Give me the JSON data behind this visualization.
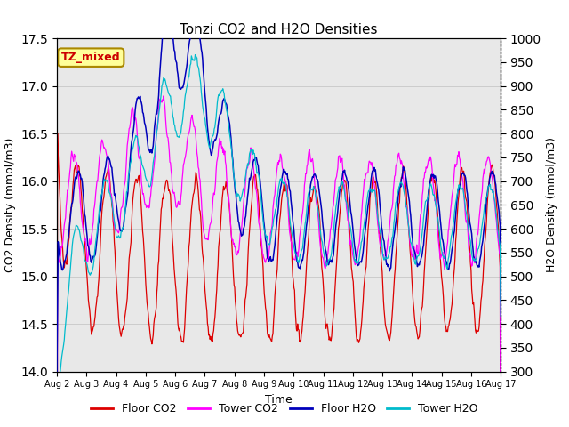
{
  "title": "Tonzi CO2 and H2O Densities",
  "xlabel": "Time",
  "ylabel_left": "CO2 Density (mmol/m3)",
  "ylabel_right": "H2O Density (mmol/m3)",
  "annotation": "TZ_mixed",
  "annotation_color": "#cc0000",
  "annotation_bg": "#ffff99",
  "annotation_border": "#aa8800",
  "left_ylim": [
    14.0,
    17.5
  ],
  "right_ylim": [
    300,
    1000
  ],
  "left_yticks": [
    14.0,
    14.5,
    15.0,
    15.5,
    16.0,
    16.5,
    17.0,
    17.5
  ],
  "right_yticks": [
    300,
    350,
    400,
    450,
    500,
    550,
    600,
    650,
    700,
    750,
    800,
    850,
    900,
    950,
    1000
  ],
  "colors": {
    "floor_co2": "#dd0000",
    "tower_co2": "#ff00ff",
    "floor_h2o": "#0000bb",
    "tower_h2o": "#00bbcc"
  },
  "legend_labels": [
    "Floor CO2",
    "Tower CO2",
    "Floor H2O",
    "Tower H2O"
  ],
  "grid_color": "#cccccc",
  "bg_color": "#e8e8e8",
  "n_points": 720,
  "num_days": 15
}
